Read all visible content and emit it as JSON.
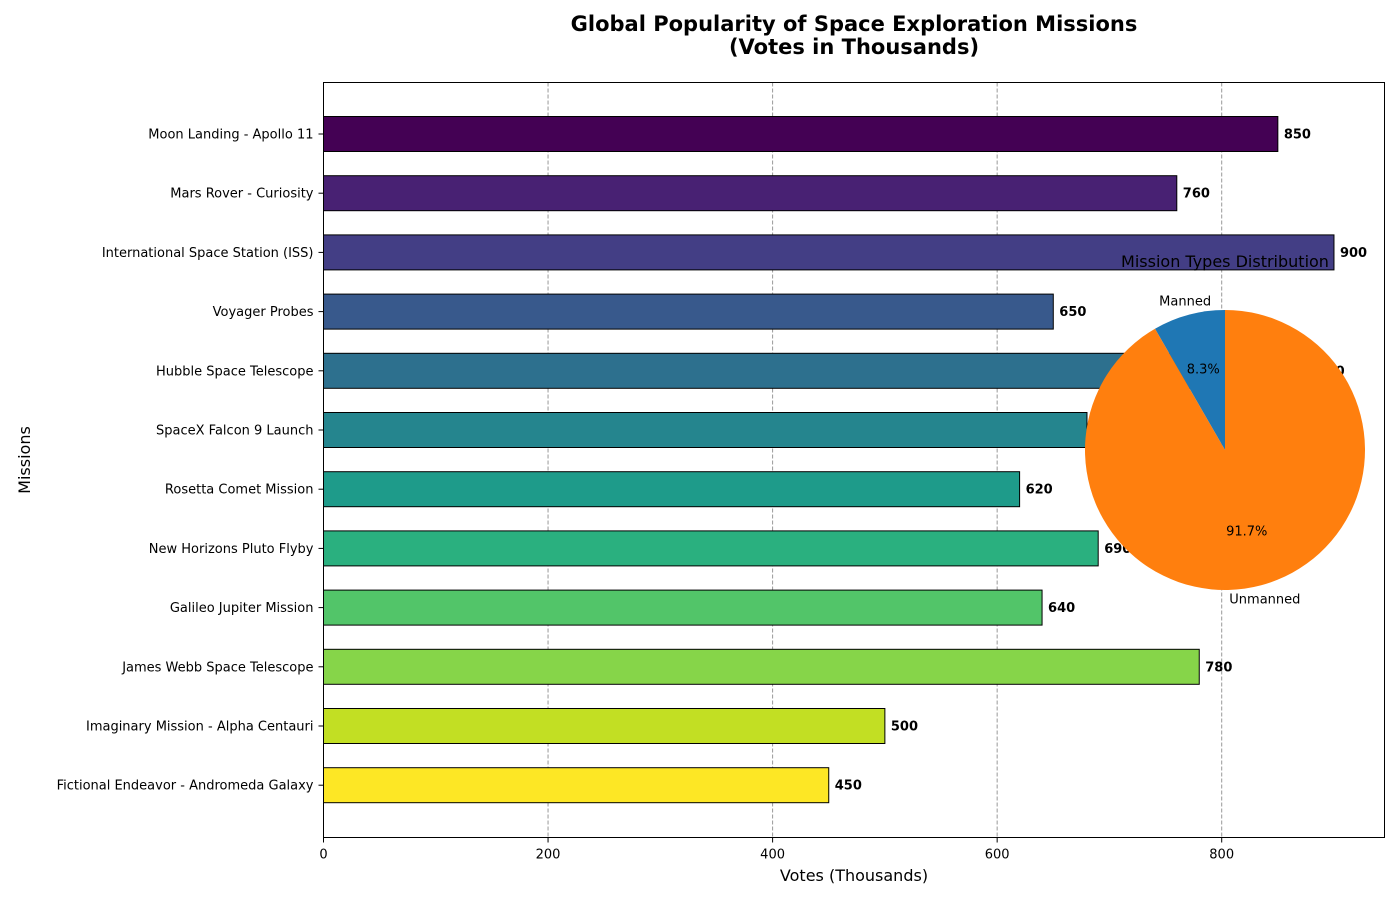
{
  "chart_data": [
    {
      "type": "bar",
      "orientation": "horizontal",
      "title_lines": [
        "Global Popularity of Space Exploration Missions",
        "(Votes in Thousands)"
      ],
      "xlabel": "Votes (Thousands)",
      "ylabel": "Missions",
      "xlim": [
        0,
        945
      ],
      "xticks": [
        0,
        200,
        400,
        600,
        800
      ],
      "grid": "x-dashed",
      "categories": [
        "Moon Landing - Apollo 11",
        "Mars Rover - Curiosity",
        "International Space Station (ISS)",
        "Voyager Probes",
        "Hubble Space Telescope",
        "SpaceX Falcon 9 Launch",
        "Rosetta Comet Mission",
        "New Horizons Pluto Flyby",
        "Galileo Jupiter Mission",
        "James Webb Space Telescope",
        "Imaginary Mission - Alpha Centauri",
        "Fictional Endeavor - Andromeda Galaxy"
      ],
      "values": [
        850,
        760,
        900,
        650,
        880,
        680,
        620,
        690,
        640,
        780,
        500,
        450
      ],
      "colors": [
        "#440154",
        "#482173",
        "#433e85",
        "#38598c",
        "#2d708e",
        "#25858e",
        "#1e9b8a",
        "#2ab07f",
        "#52c569",
        "#86d549",
        "#c2df23",
        "#fde725"
      ]
    },
    {
      "type": "pie",
      "title": "Mission Types Distribution",
      "labels": [
        "Manned",
        "Unmanned"
      ],
      "values": [
        1,
        11
      ],
      "percent_labels": [
        "8.3%",
        "91.7%"
      ],
      "colors": [
        "#1f77b4",
        "#ff7f0e"
      ]
    }
  ]
}
